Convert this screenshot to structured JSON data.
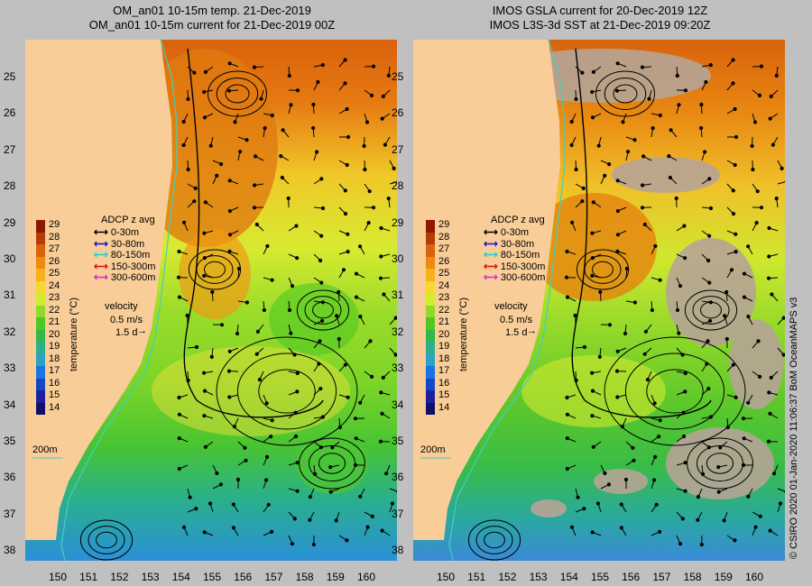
{
  "panels": [
    {
      "title_line1": "OM_an01 10-15m temp. 21-Dec-2019",
      "title_line2": "OM_an01 10-15m current for 21-Dec-2019 00Z"
    },
    {
      "title_line1": "IMOS GSLA current for 20-Dec-2019 12Z",
      "title_line2": "IMOS L3S-3d SST at 21-Dec-2019 09:20Z"
    }
  ],
  "latitude_ticks": [
    "25",
    "26",
    "27",
    "28",
    "29",
    "30",
    "31",
    "32",
    "33",
    "34",
    "35",
    "36",
    "37",
    "38"
  ],
  "longitude_ticks": [
    "150",
    "151",
    "152",
    "153",
    "154",
    "155",
    "156",
    "157",
    "158",
    "159",
    "160"
  ],
  "colorbar": {
    "labels": [
      "29",
      "28",
      "27",
      "26",
      "25",
      "24",
      "23",
      "22",
      "21",
      "20",
      "19",
      "18",
      "17",
      "16",
      "15",
      "14"
    ],
    "colors": [
      "#8b1a00",
      "#b43c08",
      "#d9620c",
      "#ee8a10",
      "#f6b21a",
      "#f2d830",
      "#d2ec2c",
      "#90da2a",
      "#4ec823",
      "#32b84a",
      "#2ab08a",
      "#2aa2c8",
      "#1a74e2",
      "#1446c8",
      "#1a209e",
      "#10106a"
    ],
    "title": "temperature (°C)"
  },
  "legend": {
    "title": "ADCP z avg",
    "items": [
      {
        "label": "0-30m",
        "color": "#000000"
      },
      {
        "label": "30-80m",
        "color": "#1010e0"
      },
      {
        "label": "80-150m",
        "color": "#20d0d0"
      },
      {
        "label": "150-300m",
        "color": "#e01010"
      },
      {
        "label": "300-600m",
        "color": "#e020e0"
      }
    ],
    "velocity_label": "velocity",
    "velocity_value": "0.5 m/s",
    "velocity_time": "1.5 d"
  },
  "isobath_label": "200m",
  "credit": "© CSIRO 2020   01-Jan-2020 11:06:37 BoM OceanMAPS v3",
  "colors": {
    "land": "#f8cd98",
    "background": "#c0c0c0",
    "coastline_isobath": "#40d0c0",
    "cloud_mask": "#b6a496"
  }
}
